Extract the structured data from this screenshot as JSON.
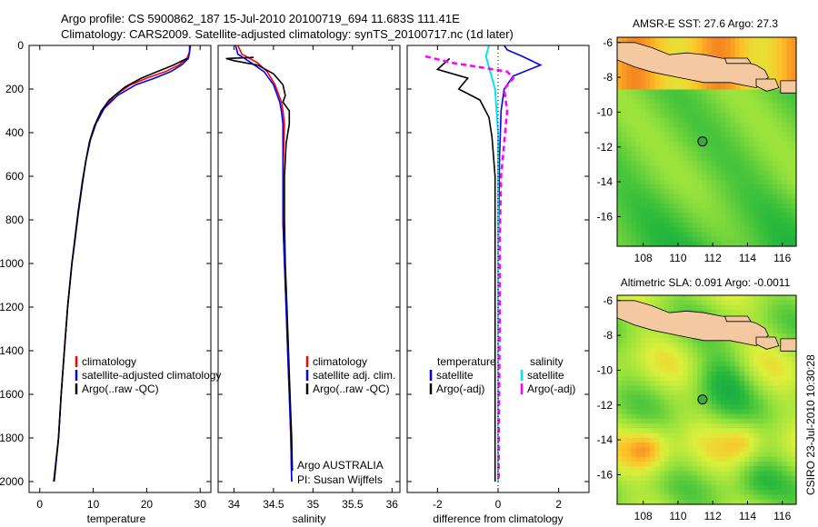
{
  "header": {
    "line1": "Argo profile: CS 5900862_187 15-Jul-2010 20100719_694 11.683S 111.41E",
    "line2": "Climatology: CARS2009. Satellite-adjusted climatology: synTS_20100717.nc (1d later)"
  },
  "side_text": "CSIRO 23-Jul-2010 10:30:28",
  "colors": {
    "climatology": "#ff0000",
    "satellite": "#0000ff",
    "argo": "#000000",
    "sat_sal": "#00e5ee",
    "argo_sal": "#ff00ff",
    "land": "#f4c8a0"
  },
  "chart_data": [
    {
      "type": "line",
      "xlabel": "temperature",
      "ylabel": "",
      "xlim": [
        -2,
        32
      ],
      "ylim": [
        2050,
        0
      ],
      "xticks": [
        0,
        10,
        20,
        30
      ],
      "yticks": [
        0,
        200,
        400,
        600,
        800,
        1000,
        1200,
        1400,
        1600,
        1800,
        2000
      ],
      "legend": [
        "climatology",
        "satellite-adjusted climatology",
        "Argo(..raw -QC)"
      ],
      "series": [
        {
          "name": "climatology",
          "points": [
            [
              28.0,
              0
            ],
            [
              28.0,
              30
            ],
            [
              27.5,
              60
            ],
            [
              26.0,
              90
            ],
            [
              23.5,
              120
            ],
            [
              20.0,
              150
            ],
            [
              17.0,
              180
            ],
            [
              14.0,
              230
            ],
            [
              12.0,
              290
            ],
            [
              10.5,
              360
            ],
            [
              9.5,
              430
            ],
            [
              8.7,
              520
            ],
            [
              8.0,
              620
            ],
            [
              7.2,
              760
            ],
            [
              6.5,
              900
            ],
            [
              6.0,
              1000
            ],
            [
              5.2,
              1200
            ],
            [
              4.6,
              1400
            ],
            [
              4.0,
              1600
            ],
            [
              3.5,
              1800
            ],
            [
              2.7,
              2000
            ]
          ]
        },
        {
          "name": "satellite-adjusted climatology",
          "points": [
            [
              28.2,
              0
            ],
            [
              28.0,
              30
            ],
            [
              27.8,
              60
            ],
            [
              26.5,
              90
            ],
            [
              24.5,
              120
            ],
            [
              21.5,
              150
            ],
            [
              18.0,
              180
            ],
            [
              14.5,
              230
            ],
            [
              12.0,
              290
            ],
            [
              10.5,
              360
            ],
            [
              9.5,
              430
            ],
            [
              8.7,
              520
            ],
            [
              8.0,
              620
            ],
            [
              7.2,
              760
            ],
            [
              6.5,
              900
            ],
            [
              6.0,
              1000
            ],
            [
              5.2,
              1200
            ],
            [
              4.6,
              1400
            ],
            [
              4.0,
              1600
            ],
            [
              3.5,
              1800
            ],
            [
              2.7,
              2000
            ]
          ]
        },
        {
          "name": "Argo(..raw -QC)",
          "points": [
            [
              27.5,
              60
            ],
            [
              25.0,
              90
            ],
            [
              22.0,
              120
            ],
            [
              19.0,
              150
            ],
            [
              16.0,
              190
            ],
            [
              13.0,
              250
            ],
            [
              11.5,
              300
            ],
            [
              10.2,
              370
            ],
            [
              9.3,
              440
            ],
            [
              8.6,
              530
            ],
            [
              8.0,
              630
            ],
            [
              7.2,
              770
            ],
            [
              6.5,
              910
            ],
            [
              6.0,
              1000
            ],
            [
              5.2,
              1200
            ],
            [
              4.6,
              1400
            ],
            [
              4.0,
              1600
            ],
            [
              3.5,
              1800
            ],
            [
              2.6,
              2000
            ]
          ]
        }
      ]
    },
    {
      "type": "line",
      "xlabel": "salinity",
      "xlim": [
        33.8,
        36.1
      ],
      "ylim": [
        2050,
        0
      ],
      "xticks": [
        34,
        34.5,
        35,
        35.5,
        36
      ],
      "legend": [
        "climatology",
        "satellite adj. clim.",
        "Argo(..raw -QC)"
      ],
      "annotations": [
        "Argo AUSTRALIA",
        "PI: Susan Wijffels"
      ],
      "series": [
        {
          "name": "climatology",
          "points": [
            [
              34.05,
              0
            ],
            [
              34.1,
              40
            ],
            [
              34.3,
              80
            ],
            [
              34.42,
              120
            ],
            [
              34.52,
              180
            ],
            [
              34.6,
              260
            ],
            [
              34.62,
              300
            ],
            [
              34.64,
              360
            ],
            [
              34.63,
              450
            ],
            [
              34.62,
              600
            ],
            [
              34.62,
              800
            ],
            [
              34.64,
              1000
            ],
            [
              34.66,
              1200
            ],
            [
              34.68,
              1400
            ],
            [
              34.7,
              1600
            ],
            [
              34.72,
              1800
            ],
            [
              34.73,
              2000
            ]
          ]
        },
        {
          "name": "satellite adj. clim.",
          "points": [
            [
              34.02,
              0
            ],
            [
              34.05,
              40
            ],
            [
              34.22,
              80
            ],
            [
              34.38,
              120
            ],
            [
              34.5,
              180
            ],
            [
              34.58,
              260
            ],
            [
              34.6,
              300
            ],
            [
              34.62,
              360
            ],
            [
              34.62,
              450
            ],
            [
              34.62,
              600
            ],
            [
              34.62,
              800
            ],
            [
              34.64,
              1000
            ],
            [
              34.66,
              1200
            ],
            [
              34.68,
              1400
            ],
            [
              34.7,
              1600
            ],
            [
              34.72,
              1800
            ],
            [
              34.73,
              2000
            ]
          ]
        },
        {
          "name": "Argo(..raw -QC)",
          "points": [
            [
              34.25,
              55
            ],
            [
              33.9,
              60
            ],
            [
              34.0,
              70
            ],
            [
              34.3,
              90
            ],
            [
              34.5,
              130
            ],
            [
              34.62,
              180
            ],
            [
              34.65,
              230
            ],
            [
              34.62,
              260
            ],
            [
              34.7,
              300
            ],
            [
              34.7,
              360
            ],
            [
              34.66,
              450
            ],
            [
              34.64,
              600
            ],
            [
              34.64,
              800
            ],
            [
              34.65,
              1000
            ],
            [
              34.67,
              1200
            ],
            [
              34.69,
              1400
            ],
            [
              34.71,
              1600
            ],
            [
              34.73,
              1800
            ],
            [
              34.74,
              1950
            ]
          ]
        }
      ]
    },
    {
      "type": "line",
      "xlabel": "difference from climatology",
      "xlim": [
        -3.0,
        3.0
      ],
      "ylim": [
        2050,
        0
      ],
      "xticks": [
        -2,
        0,
        2
      ],
      "legend_headers": [
        "temperature",
        "salinity"
      ],
      "legend": [
        "satellite",
        "Argo(-adj)",
        "satellite",
        "Argo(-adj)"
      ],
      "series": [
        {
          "name": "temperature satellite",
          "points": [
            [
              0.2,
              0
            ],
            [
              0.3,
              20
            ],
            [
              0.8,
              50
            ],
            [
              1.4,
              90
            ],
            [
              0.5,
              140
            ],
            [
              0.2,
              200
            ],
            [
              0.1,
              300
            ],
            [
              0.05,
              500
            ],
            [
              0.0,
              1000
            ],
            [
              0.0,
              2000
            ]
          ]
        },
        {
          "name": "temperature Argo(-adj)",
          "points": [
            [
              -1.6,
              60
            ],
            [
              -2.0,
              110
            ],
            [
              -1.0,
              150
            ],
            [
              -1.3,
              200
            ],
            [
              -0.6,
              250
            ],
            [
              -0.3,
              330
            ],
            [
              -0.2,
              420
            ],
            [
              -0.1,
              600
            ],
            [
              -0.1,
              900
            ],
            [
              -0.1,
              1400
            ],
            [
              -0.1,
              1800
            ],
            [
              -0.1,
              2000
            ]
          ]
        },
        {
          "name": "salinity satellite",
          "points": [
            [
              -0.3,
              0
            ],
            [
              -0.4,
              50
            ],
            [
              -0.3,
              100
            ],
            [
              -0.1,
              200
            ],
            [
              0.0,
              400
            ],
            [
              0.0,
              1000
            ],
            [
              0.0,
              2000
            ]
          ]
        },
        {
          "name": "salinity Argo(-adj)",
          "points": [
            [
              -2.4,
              50
            ],
            [
              -1.5,
              80
            ],
            [
              0.3,
              120
            ],
            [
              0.5,
              150
            ],
            [
              0.2,
              200
            ],
            [
              0.3,
              300
            ],
            [
              0.2,
              450
            ],
            [
              0.1,
              600
            ],
            [
              0.05,
              900
            ],
            [
              0.05,
              1300
            ],
            [
              0.03,
              1700
            ],
            [
              0.02,
              2000
            ]
          ]
        }
      ]
    },
    {
      "type": "heatmap",
      "title": "AMSR-E SST: 27.6 Argo: 27.3",
      "xlim": [
        106.5,
        116.8
      ],
      "ylim": [
        -17.7,
        -5.7
      ],
      "xticks": [
        108,
        110,
        112,
        114,
        116
      ],
      "yticks": [
        -6,
        -8,
        -10,
        -12,
        -14,
        -16
      ],
      "marker": {
        "lon": 111.41,
        "lat": -11.683
      }
    },
    {
      "type": "heatmap",
      "title": "Altimetric SLA: 0.091 Argo: -0.0011",
      "xlim": [
        106.5,
        116.8
      ],
      "ylim": [
        -17.7,
        -5.7
      ],
      "xticks": [
        108,
        110,
        112,
        114,
        116
      ],
      "yticks": [
        -6,
        -8,
        -10,
        -12,
        -14,
        -16
      ],
      "marker": {
        "lon": 111.41,
        "lat": -11.683
      }
    }
  ]
}
